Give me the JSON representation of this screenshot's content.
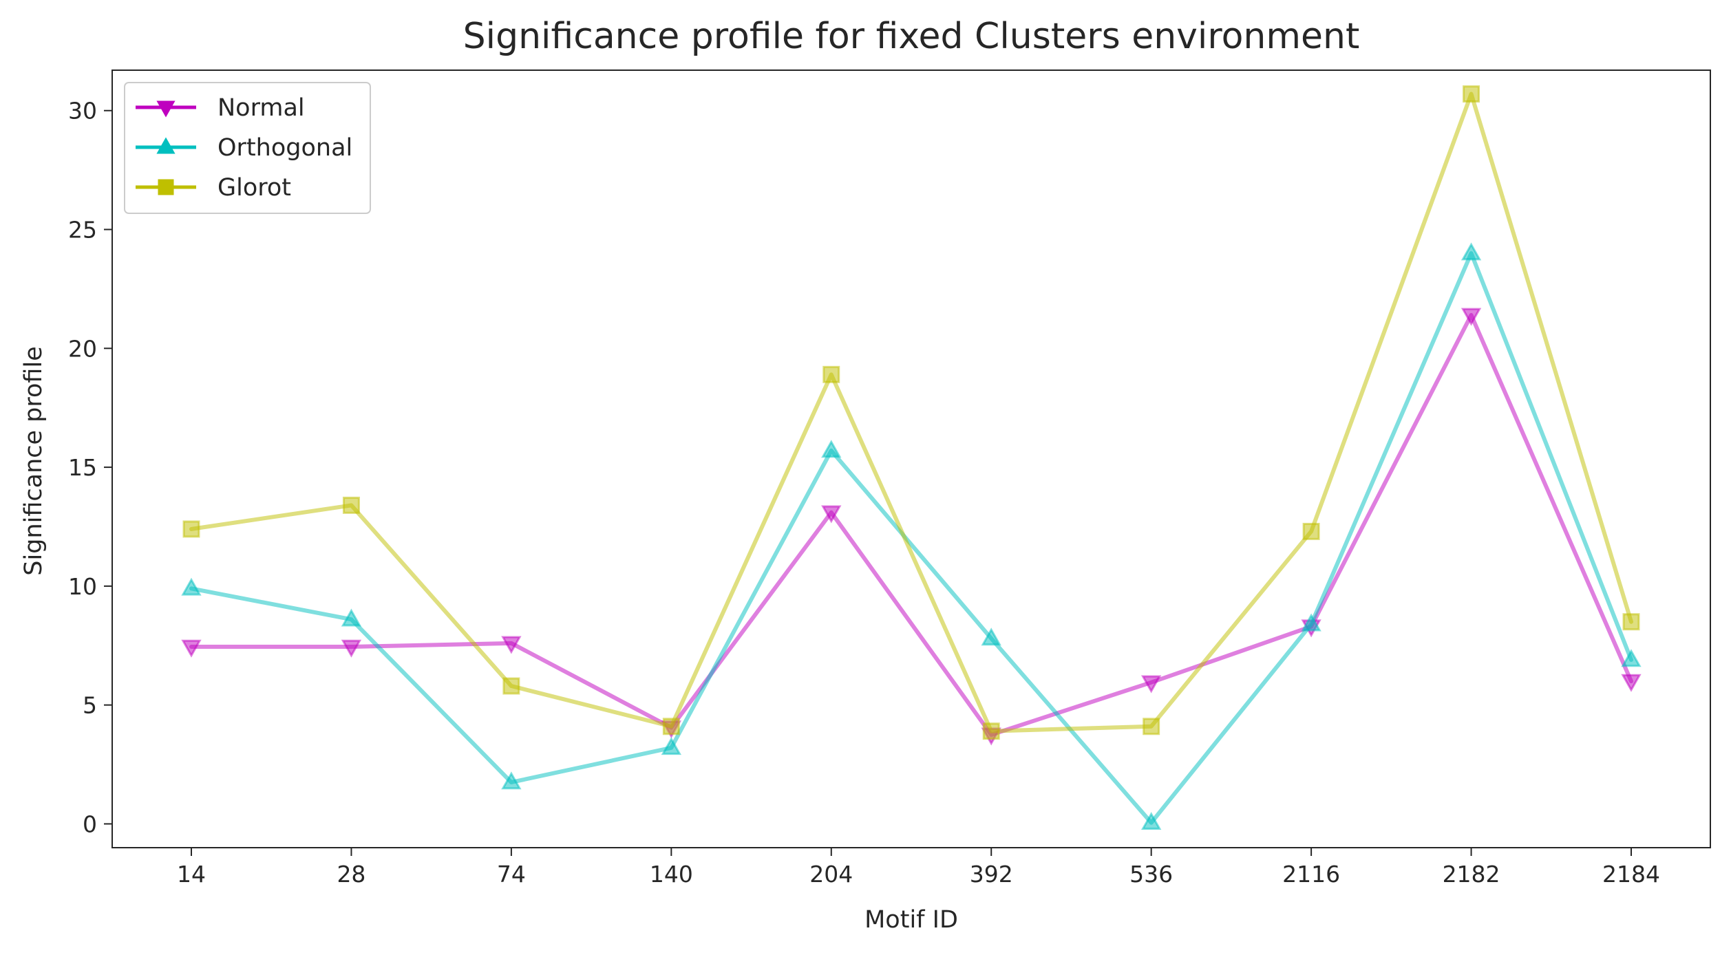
{
  "chart_data": {
    "type": "line",
    "title": "Significance profile for fixed Clusters environment",
    "xlabel": "Motif ID",
    "ylabel": "Significance profile",
    "categories": [
      "14",
      "28",
      "74",
      "140",
      "204",
      "392",
      "536",
      "2116",
      "2182",
      "2184"
    ],
    "ylim": [
      -1,
      31.7
    ],
    "yticks": [
      0,
      5,
      10,
      15,
      20,
      25,
      30
    ],
    "grid": false,
    "legend_position": "top-left",
    "series": [
      {
        "name": "Normal",
        "color": "#bf00bf",
        "marker": "triangle-down",
        "values": [
          7.45,
          7.45,
          7.6,
          4.05,
          13.1,
          3.75,
          5.95,
          8.3,
          21.4,
          6.0
        ]
      },
      {
        "name": "Orthogonal",
        "color": "#00bfbf",
        "marker": "triangle-up",
        "values": [
          9.9,
          8.6,
          1.75,
          3.2,
          15.7,
          7.8,
          0.05,
          8.4,
          24.0,
          6.9
        ]
      },
      {
        "name": "Glorot",
        "color": "#bfbf00",
        "marker": "square",
        "values": [
          12.4,
          13.4,
          5.8,
          4.1,
          18.9,
          3.9,
          4.1,
          12.3,
          30.7,
          8.5
        ]
      }
    ]
  }
}
